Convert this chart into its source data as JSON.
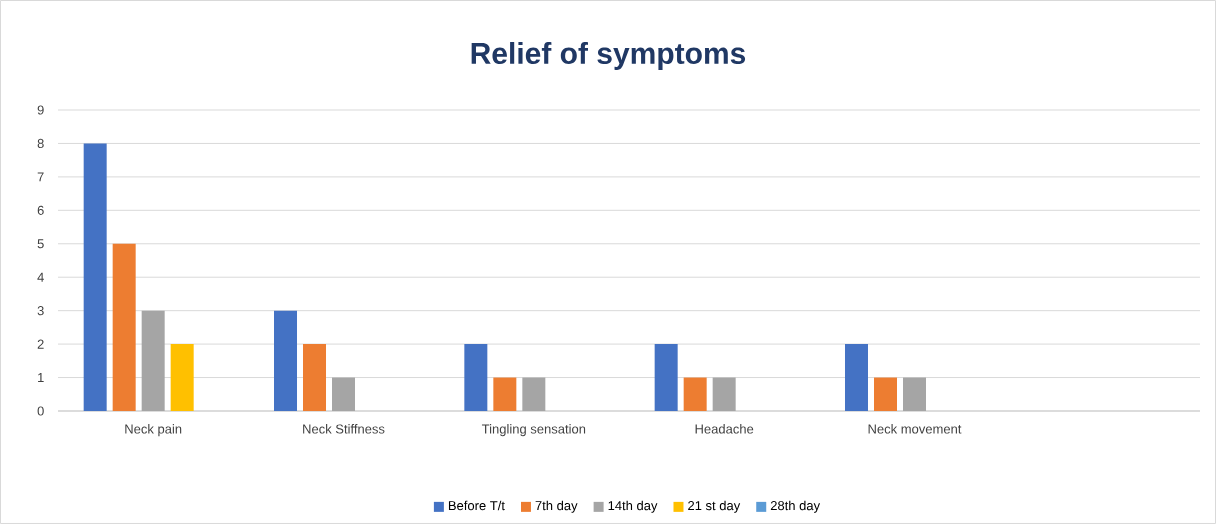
{
  "chart_data": {
    "type": "bar",
    "title": "Relief of symptoms",
    "categories": [
      "Neck pain",
      "Neck Stiffness",
      "Tingling sensation",
      "Headache",
      "Neck movement",
      null
    ],
    "series": [
      {
        "name": "Before T/t",
        "color": "#4472c4",
        "values": [
          8,
          3,
          2,
          2,
          2,
          null
        ]
      },
      {
        "name": "7th day",
        "color": "#ed7d31",
        "values": [
          5,
          2,
          1,
          1,
          1,
          null
        ]
      },
      {
        "name": "14th day",
        "color": "#a5a5a5",
        "values": [
          3,
          1,
          1,
          1,
          1,
          null
        ]
      },
      {
        "name": "21 st day",
        "color": "#ffc000",
        "values": [
          2,
          0,
          0,
          0,
          0,
          null
        ]
      },
      {
        "name": "28th day",
        "color": "#5b9bd5",
        "values": [
          0,
          0,
          0,
          0,
          0,
          null
        ]
      }
    ],
    "ylim": [
      0,
      9
    ],
    "yticks": [
      0,
      1,
      2,
      3,
      4,
      5,
      6,
      7,
      8,
      9
    ],
    "grid": "y",
    "legend": "bottom"
  }
}
